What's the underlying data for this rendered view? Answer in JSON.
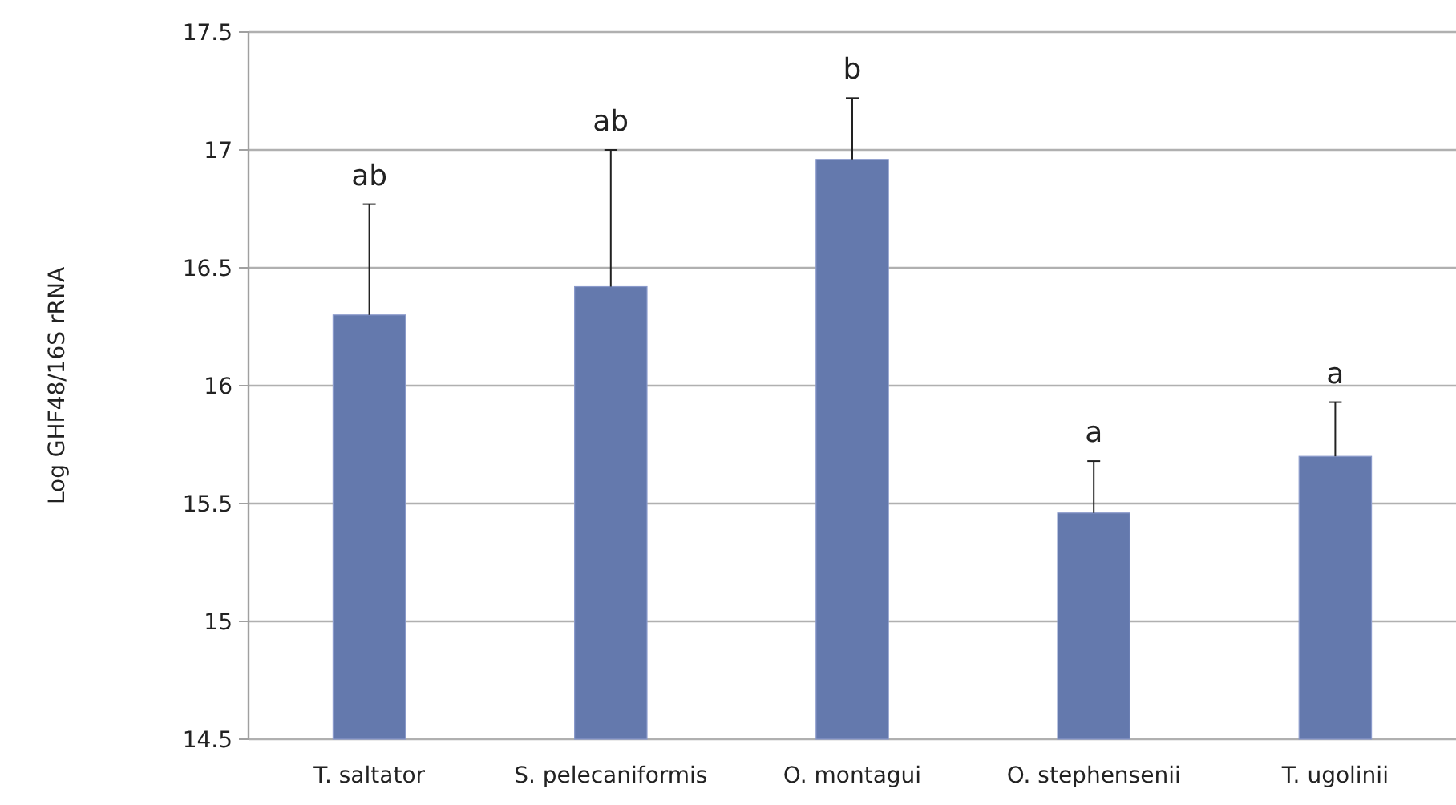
{
  "chart_data": {
    "type": "bar",
    "ylabel": "Log GHF48/16S rRNA",
    "categories": [
      "T. saltator",
      "S. pelecaniformis",
      "O. montagui",
      "O. stephensenii",
      "T. ugolinii"
    ],
    "values": [
      16.3,
      16.42,
      16.96,
      15.46,
      15.7
    ],
    "errors": [
      [
        16.3,
        16.77
      ],
      [
        16.42,
        17.0
      ],
      [
        16.96,
        17.22
      ],
      [
        15.46,
        15.68
      ],
      [
        15.7,
        15.93
      ]
    ],
    "color": "#6479ad",
    "ylim": [
      14.5,
      17.5
    ],
    "yticks": [
      14.5,
      15,
      15.5,
      16,
      16.5,
      17,
      17.5
    ],
    "grid": "y",
    "annotations": [
      {
        "text": "ab",
        "x": "T. saltator",
        "y": 16.77
      },
      {
        "text": "ab",
        "x": "S. pelecaniformis",
        "y": 17.0
      },
      {
        "text": "b",
        "x": "O. montagui",
        "y": 17.22
      },
      {
        "text": "a",
        "x": "O. stephensenii",
        "y": 15.68
      },
      {
        "text": "a",
        "x": "T. ugolinii",
        "y": 15.93
      }
    ]
  }
}
